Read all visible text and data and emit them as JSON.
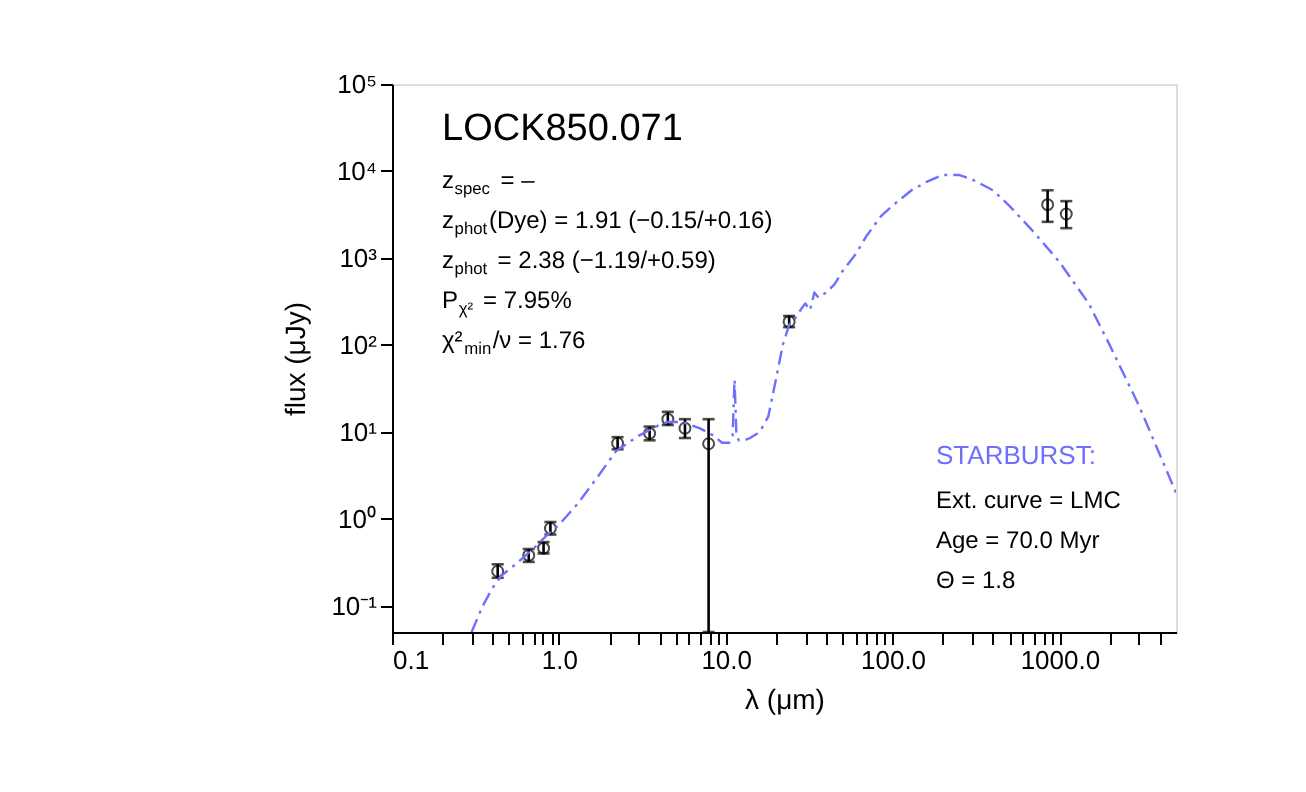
{
  "chart_data": {
    "type": "scatter",
    "xlabel": "λ (μm)",
    "ylabel": "flux (μJy)",
    "log": "xy",
    "grid": false,
    "xlim": [
      0.1,
      5000
    ],
    "ylim": [
      0.05,
      100000
    ],
    "xticks": [
      {
        "value": 0.1,
        "label": "0.1"
      },
      {
        "value": 0.2,
        "label": null
      },
      {
        "value": 0.3,
        "label": null
      },
      {
        "value": 0.4,
        "label": null
      },
      {
        "value": 0.5,
        "label": null
      },
      {
        "value": 0.6,
        "label": null
      },
      {
        "value": 0.7,
        "label": null
      },
      {
        "value": 0.8,
        "label": null
      },
      {
        "value": 0.9,
        "label": null
      },
      {
        "value": 1,
        "label": "1.0"
      },
      {
        "value": 2,
        "label": null
      },
      {
        "value": 3,
        "label": null
      },
      {
        "value": 4,
        "label": null
      },
      {
        "value": 5,
        "label": null
      },
      {
        "value": 6,
        "label": null
      },
      {
        "value": 7,
        "label": null
      },
      {
        "value": 8,
        "label": null
      },
      {
        "value": 9,
        "label": null
      },
      {
        "value": 10,
        "label": "10.0"
      },
      {
        "value": 20,
        "label": null
      },
      {
        "value": 30,
        "label": null
      },
      {
        "value": 40,
        "label": null
      },
      {
        "value": 50,
        "label": null
      },
      {
        "value": 60,
        "label": null
      },
      {
        "value": 70,
        "label": null
      },
      {
        "value": 80,
        "label": null
      },
      {
        "value": 90,
        "label": null
      },
      {
        "value": 100,
        "label": "100.0"
      },
      {
        "value": 200,
        "label": null
      },
      {
        "value": 300,
        "label": null
      },
      {
        "value": 400,
        "label": null
      },
      {
        "value": 500,
        "label": null
      },
      {
        "value": 600,
        "label": null
      },
      {
        "value": 700,
        "label": null
      },
      {
        "value": 800,
        "label": null
      },
      {
        "value": 900,
        "label": null
      },
      {
        "value": 1000,
        "label": "1000.0"
      },
      {
        "value": 2000,
        "label": null
      },
      {
        "value": 3000,
        "label": null
      },
      {
        "value": 4000,
        "label": null
      }
    ],
    "yticks": [
      {
        "value": 0.1,
        "label": "10⁻¹"
      },
      {
        "value": 1,
        "label": "10⁰"
      },
      {
        "value": 10,
        "label": "10¹"
      },
      {
        "value": 100,
        "label": "10²"
      },
      {
        "value": 1000,
        "label": "10³"
      },
      {
        "value": 10000,
        "label": "10⁴"
      },
      {
        "value": 100000,
        "label": "10⁵"
      }
    ],
    "series": [
      {
        "color": "#000000",
        "marker": "circle",
        "x": [
          0.43,
          0.66,
          0.81,
          0.89,
          2.25,
          3.5,
          4.5,
          5.7,
          7.9,
          24,
          850,
          1100
        ],
        "values": [
          0.25,
          0.38,
          0.46,
          0.78,
          7.4,
          9.6,
          14,
          11,
          7.3,
          185,
          4100,
          3200
        ],
        "errors": [
          [
            0.21,
            0.3
          ],
          [
            0.32,
            0.45
          ],
          [
            0.4,
            0.54
          ],
          [
            0.66,
            0.92
          ],
          [
            6.3,
            8.7
          ],
          [
            8.0,
            11.5
          ],
          [
            12,
            17
          ],
          [
            8.5,
            14
          ],
          [
            0.05,
            14
          ],
          [
            160,
            215
          ],
          [
            2600,
            6000
          ],
          [
            2200,
            4500
          ]
        ]
      },
      {
        "type": "line",
        "name": "STARBURST:",
        "color": "#6f6fff",
        "line_style": "dashed",
        "marker": "none",
        "x": [
          0.3,
          0.35,
          0.4,
          0.45,
          0.55,
          0.7,
          0.85,
          1.0,
          1.3,
          1.7,
          2.2,
          3,
          4,
          4.5,
          5.5,
          7,
          8.5,
          9.5,
          10.5,
          11,
          11.3,
          11.6,
          12,
          13,
          14,
          16,
          18,
          20,
          22,
          24,
          26,
          28,
          30,
          32,
          34,
          36,
          40,
          45,
          50,
          60,
          70,
          85,
          100,
          130,
          160,
          200,
          250,
          300,
          400,
          500,
          700,
          1000,
          1500,
          2000,
          3000,
          5000
        ],
        "values": [
          0.05,
          0.1,
          0.16,
          0.22,
          0.3,
          0.45,
          0.65,
          0.85,
          1.5,
          3,
          6,
          9,
          12,
          13,
          13,
          11,
          9,
          7.5,
          7.5,
          9,
          40,
          9,
          8,
          8,
          8.5,
          10,
          15,
          40,
          100,
          170,
          200,
          250,
          300,
          250,
          400,
          350,
          400,
          500,
          700,
          1100,
          1800,
          3000,
          4000,
          6000,
          7500,
          9000,
          9000,
          8000,
          6000,
          4000,
          2000,
          900,
          300,
          100,
          20,
          2
        ]
      }
    ],
    "annotations": [
      "LOCK850.071",
      "z$_{spec}$ = –",
      "z$_{phot}$(Dye) = 1.91 (−0.15/+0.16)",
      "z$_{phot}$ = 2.38 (−1.19/+0.59)",
      "P$_{χ²}$ = 7.95%",
      "χ²$_{min}$/ν = 1.76",
      "Ext. curve = LMC",
      "Age = 70.0 Myr",
      "Θ = 1.8"
    ]
  }
}
